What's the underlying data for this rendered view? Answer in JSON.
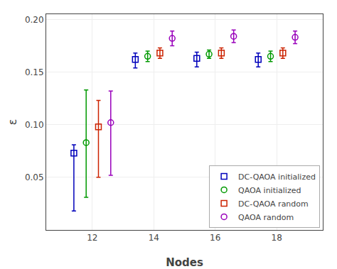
{
  "chart_data": {
    "type": "errorbar",
    "xlabel": "Nodes",
    "ylabel": "ε",
    "xlim": [
      10.5,
      19.5
    ],
    "ylim": [
      0.0,
      0.205
    ],
    "xticks": [
      12,
      14,
      16,
      18
    ],
    "yticks": [
      0.05,
      {
        "value": 0.1,
        "label": "0.10"
      },
      0.15,
      {
        "value": 0.2,
        "label": "0.20"
      }
    ],
    "grid": true,
    "legend": "lower right",
    "series": [
      {
        "name": "DC-QAOA initialized",
        "color": "#0000bb",
        "marker": "square",
        "x": [
          12,
          14,
          16,
          18
        ],
        "values": [
          0.073,
          0.162,
          0.163,
          0.162
        ],
        "error_low": [
          0.055,
          0.008,
          0.008,
          0.007
        ],
        "error_high": [
          0.008,
          0.006,
          0.006,
          0.006
        ]
      },
      {
        "name": "QAOA initialized",
        "color": "#009900",
        "marker": "circle",
        "x": [
          12,
          14,
          16,
          18
        ],
        "values": [
          0.083,
          0.165,
          0.167,
          0.165
        ],
        "error_low": [
          0.052,
          0.005,
          0.004,
          0.005
        ],
        "error_high": [
          0.05,
          0.005,
          0.004,
          0.005
        ]
      },
      {
        "name": "DC-QAOA random",
        "color": "#cc2200",
        "marker": "square",
        "x": [
          12,
          14,
          16,
          18
        ],
        "values": [
          0.098,
          0.168,
          0.168,
          0.168
        ],
        "error_low": [
          0.048,
          0.005,
          0.005,
          0.005
        ],
        "error_high": [
          0.025,
          0.005,
          0.005,
          0.005
        ]
      },
      {
        "name": "QAOA random",
        "color": "#9900bb",
        "marker": "circle",
        "x": [
          12,
          14,
          16,
          18
        ],
        "values": [
          0.102,
          0.182,
          0.184,
          0.183
        ],
        "error_low": [
          0.05,
          0.007,
          0.006,
          0.006
        ],
        "error_high": [
          0.03,
          0.007,
          0.006,
          0.006
        ]
      }
    ]
  }
}
